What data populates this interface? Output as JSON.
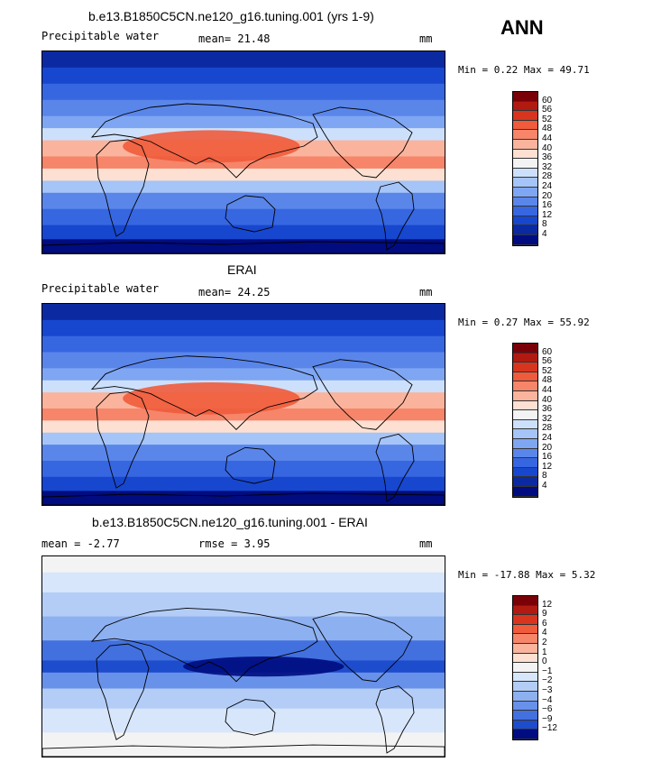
{
  "season": "ANN",
  "panels": [
    {
      "title": "b.e13.B1850C5CN.ne120_g16.tuning.001 (yrs 1-9)",
      "left_label": "Precipitable water",
      "center_label": "mean=  21.48",
      "units": "mm",
      "minmax": "Min =   0.22 Max =  49.71",
      "colorbar_labels": [
        "60",
        "56",
        "52",
        "48",
        "44",
        "40",
        "36",
        "32",
        "28",
        "24",
        "20",
        "16",
        "12",
        "8",
        "4"
      ],
      "colors": [
        "#7a0008",
        "#b11a10",
        "#d8351f",
        "#f05b3b",
        "#f6856a",
        "#fab49d",
        "#fde0d2",
        "#f3f3f3",
        "#cde0fb",
        "#a5c4f7",
        "#7fa6f2",
        "#5a86ea",
        "#3766e1",
        "#1747cf",
        "#0b2aa2",
        "#000c80"
      ]
    },
    {
      "title": "ERAI",
      "left_label": "Precipitable water",
      "center_label": "mean=  24.25",
      "units": "mm",
      "minmax": "Min =   0.27 Max =  55.92",
      "colorbar_labels": [
        "60",
        "56",
        "52",
        "48",
        "44",
        "40",
        "36",
        "32",
        "28",
        "24",
        "20",
        "16",
        "12",
        "8",
        "4"
      ],
      "colors": [
        "#7a0008",
        "#b11a10",
        "#d8351f",
        "#f05b3b",
        "#f6856a",
        "#fab49d",
        "#fde0d2",
        "#f3f3f3",
        "#cde0fb",
        "#a5c4f7",
        "#7fa6f2",
        "#5a86ea",
        "#3766e1",
        "#1747cf",
        "#0b2aa2",
        "#000c80"
      ]
    },
    {
      "title": "b.e13.B1850C5CN.ne120_g16.tuning.001 - ERAI",
      "left_label": "mean =  -2.77",
      "center_label": "rmse =   3.95",
      "units": "mm",
      "minmax": "Min = -17.88 Max =   5.32",
      "colorbar_labels": [
        "12",
        "9",
        "6",
        "4",
        "2",
        "1",
        "0",
        "−1",
        "−2",
        "−3",
        "−4",
        "−6",
        "−9",
        "−12"
      ],
      "colors": [
        "#7a0008",
        "#b11a10",
        "#d8351f",
        "#f05b3b",
        "#f6856a",
        "#fab49d",
        "#fde0d2",
        "#f3f3f3",
        "#d7e6fb",
        "#b3cdf6",
        "#8db0f0",
        "#6891ea",
        "#4270df",
        "#1d4ccc",
        "#000c80"
      ]
    }
  ]
}
